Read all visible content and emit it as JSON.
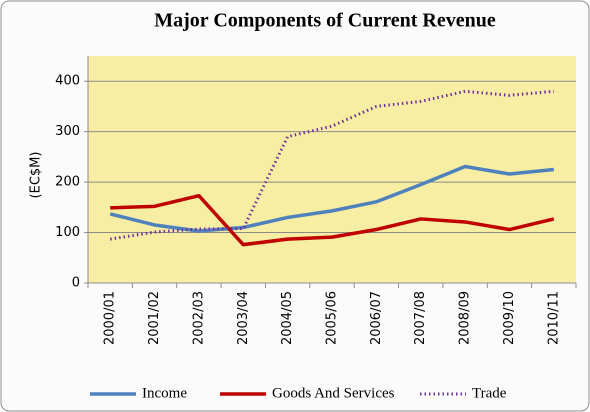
{
  "chart_data": {
    "type": "line",
    "title": "Major Components of Current Revenue",
    "y_label": "(EC$M)",
    "categories": [
      "2000/01",
      "2001/02",
      "2002/03",
      "2003/04",
      "2004/05",
      "2005/06",
      "2006/07",
      "2007/08",
      "2008/09",
      "2009/10",
      "2010/11"
    ],
    "series": [
      {
        "name": "Income",
        "color": "#4f81bd",
        "dash": "solid",
        "values": [
          137,
          115,
          103,
          110,
          130,
          143,
          161,
          195,
          231,
          216,
          225
        ]
      },
      {
        "name": "Goods And Services",
        "color": "#c00000",
        "dash": "solid",
        "values": [
          149,
          152,
          173,
          76,
          87,
          91,
          106,
          127,
          121,
          106,
          127
        ]
      },
      {
        "name": "Trade",
        "color": "#7030a0",
        "dash": "dotted",
        "values": [
          87,
          101,
          107,
          108,
          290,
          311,
          350,
          360,
          380,
          372,
          380
        ]
      }
    ],
    "ylim": [
      0,
      450
    ],
    "yticks": [
      0,
      100,
      200,
      300,
      400
    ],
    "grid": true,
    "legend": "bottom"
  }
}
